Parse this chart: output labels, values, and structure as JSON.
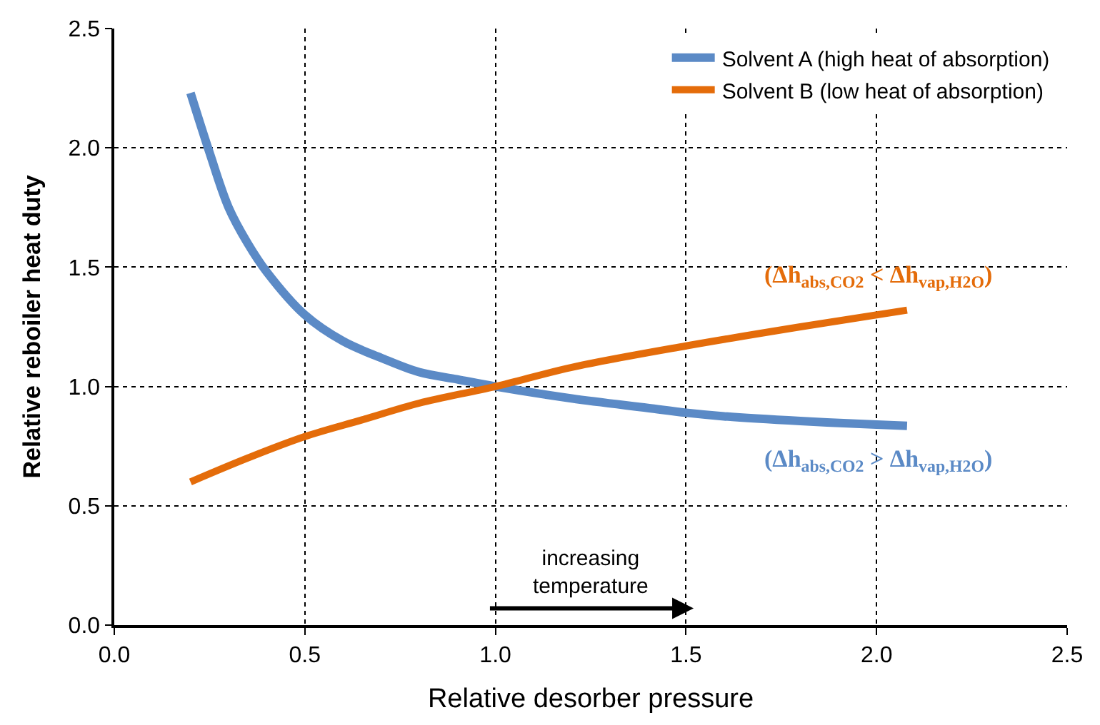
{
  "chart_data": {
    "type": "line",
    "xlabel": "Relative desorber pressure",
    "ylabel": "Relative reboiler heat duty",
    "xlim": [
      0,
      2.5
    ],
    "ylim": [
      0,
      2.5
    ],
    "xticks": [
      {
        "value": 0,
        "label": "0.0"
      },
      0.5,
      {
        "value": 1,
        "label": "1.0"
      },
      1.5,
      {
        "value": 2,
        "label": "2.0"
      },
      2.5
    ],
    "yticks": [
      {
        "value": 0,
        "label": "0.0"
      },
      0.5,
      {
        "value": 1,
        "label": "1.0"
      },
      1.5,
      {
        "value": 2,
        "label": "2.0"
      },
      2.5
    ],
    "grid": true,
    "legend": "top right",
    "marker": "none",
    "line_style": "solid",
    "series": [
      {
        "name": "Solvent A (high heat of absorption)",
        "color": "#5b8ac6",
        "x": [
          0.2,
          0.25,
          0.3,
          0.35,
          0.4,
          0.5,
          0.6,
          0.7,
          0.8,
          0.9,
          1.0,
          1.2,
          1.4,
          1.5,
          1.6,
          1.8,
          2.0,
          2.08
        ],
        "values": [
          2.23,
          1.98,
          1.75,
          1.6,
          1.48,
          1.3,
          1.19,
          1.12,
          1.06,
          1.03,
          1.0,
          0.95,
          0.91,
          0.89,
          0.875,
          0.855,
          0.84,
          0.835
        ]
      },
      {
        "name": "Solvent B (low heat of absorption)",
        "color": "#e46c0a",
        "x": [
          0.2,
          0.35,
          0.5,
          0.65,
          0.8,
          1.0,
          1.2,
          1.5,
          1.8,
          2.08
        ],
        "values": [
          0.6,
          0.7,
          0.79,
          0.86,
          0.93,
          1.0,
          1.08,
          1.17,
          1.25,
          1.32
        ]
      }
    ],
    "annotations": [
      "(Δh$_{abs,CO2}$ < Δh$_{vap,H2O}$)",
      "(Δh$_{abs,CO2}$ > Δh$_{vap,H2O}$)",
      "increasing\ntemperature"
    ]
  }
}
